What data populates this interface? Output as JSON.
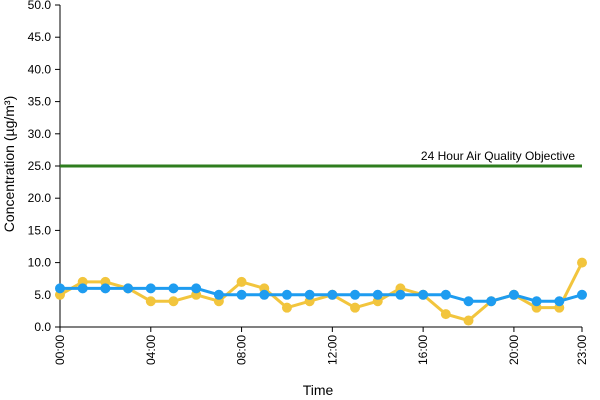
{
  "chart_data": {
    "type": "line",
    "title": "",
    "xlabel": "Time",
    "ylabel": "Concentration (µg/m³)",
    "ylim": [
      0,
      50
    ],
    "y_ticks": [
      "0.0",
      "5.0",
      "10.0",
      "15.0",
      "20.0",
      "25.0",
      "30.0",
      "35.0",
      "40.0",
      "45.0",
      "50.0"
    ],
    "x_tick_labels": [
      "00:00",
      "04:00",
      "08:00",
      "12:00",
      "16:00",
      "20:00",
      "23:00"
    ],
    "x_tick_hours": [
      0,
      4,
      8,
      12,
      16,
      20,
      23
    ],
    "x": [
      0,
      1,
      2,
      3,
      4,
      5,
      6,
      7,
      8,
      9,
      10,
      11,
      12,
      13,
      14,
      15,
      16,
      17,
      18,
      19,
      20,
      21,
      22,
      23
    ],
    "grid": false,
    "series": [
      {
        "color": "#F2C53D",
        "values": [
          5,
          7,
          7,
          6,
          4,
          4,
          5,
          4,
          7,
          6,
          3,
          4,
          5,
          3,
          4,
          6,
          5,
          2,
          1,
          4,
          5,
          3,
          3,
          10
        ]
      },
      {
        "color": "#1E9CF0",
        "values": [
          6,
          6,
          6,
          6,
          6,
          6,
          6,
          5,
          5,
          5,
          5,
          5,
          5,
          5,
          5,
          5,
          5,
          5,
          4,
          4,
          5,
          4,
          4,
          5
        ]
      }
    ],
    "reference_line": {
      "label": "24 Hour Air Quality Objective",
      "value": 25,
      "color": "#2E7D1E"
    }
  }
}
